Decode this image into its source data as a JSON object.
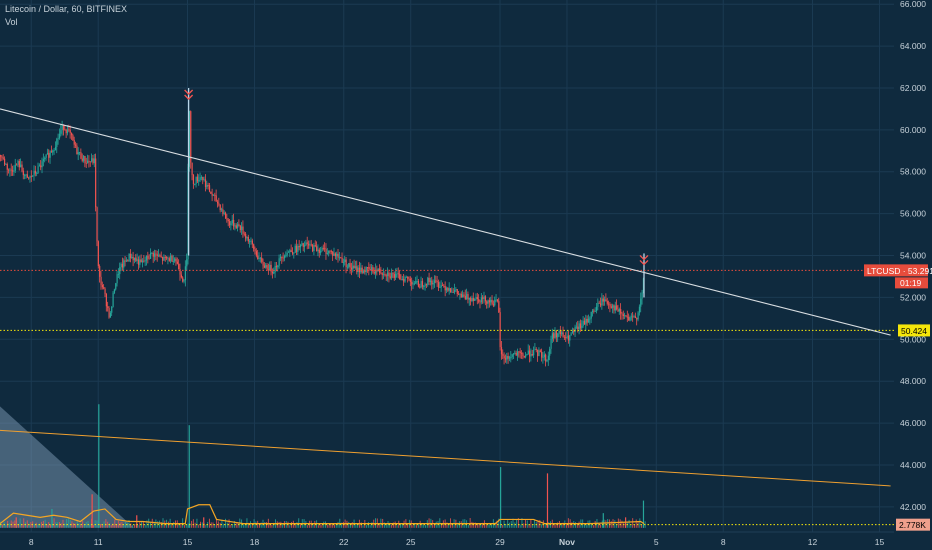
{
  "header": {
    "title": "Litecoin / Dollar, 60, BITFINEX",
    "indicator": "Vol"
  },
  "colors": {
    "background": "#0f2a3e",
    "up": "#26a69a",
    "down": "#ef5350",
    "trendline": "#d9dee2",
    "support": "#f5e60a",
    "vol_trend": "#f0a030",
    "vol_line": "#f5a623",
    "price_label_bg": "#e74c3c",
    "support_label_bg": "#f5e60a",
    "vol_label_bg": "#f0a08c",
    "axis_text": "#c7d2da"
  },
  "chart_data": {
    "type": "candlestick",
    "title": "Litecoin / Dollar, 60, BITFINEX",
    "symbol": "LTCUSD",
    "timeframe": "60",
    "exchange": "BITFINEX",
    "y_axis": {
      "position": "right",
      "ticks": [
        "42.000",
        "44.000",
        "46.000",
        "48.000",
        "50.000",
        "52.000",
        "54.000",
        "56.000",
        "58.000",
        "60.000",
        "62.000",
        "64.000",
        "66.000"
      ],
      "range": [
        40.8,
        66.2
      ]
    },
    "x_axis": {
      "ticks": [
        {
          "label": "8",
          "day": 8
        },
        {
          "label": "11",
          "day": 11
        },
        {
          "label": "15",
          "day": 15
        },
        {
          "label": "18",
          "day": 18
        },
        {
          "label": "22",
          "day": 22
        },
        {
          "label": "25",
          "day": 25
        },
        {
          "label": "29",
          "day": 29
        },
        {
          "label": "Nov",
          "day": 32
        },
        {
          "label": "5",
          "day": 36
        },
        {
          "label": "8",
          "day": 39
        },
        {
          "label": "12",
          "day": 43
        },
        {
          "label": "15",
          "day": 46
        }
      ]
    },
    "price_path": [
      [
        6.6,
        58.8
      ],
      [
        7.0,
        58.0
      ],
      [
        7.4,
        58.4
      ],
      [
        7.8,
        57.6
      ],
      [
        8.2,
        58.0
      ],
      [
        8.6,
        58.6
      ],
      [
        9.0,
        59.2
      ],
      [
        9.4,
        60.2
      ],
      [
        9.7,
        59.8
      ],
      [
        10.0,
        59.0
      ],
      [
        10.4,
        58.5
      ],
      [
        10.8,
        58.5
      ],
      [
        10.9,
        55.0
      ],
      [
        11.0,
        53.0
      ],
      [
        11.2,
        52.4
      ],
      [
        11.5,
        51.0
      ],
      [
        11.7,
        52.5
      ],
      [
        11.9,
        53.3
      ],
      [
        12.4,
        54.0
      ],
      [
        12.9,
        53.6
      ],
      [
        13.4,
        54.1
      ],
      [
        13.9,
        53.8
      ],
      [
        14.4,
        53.9
      ],
      [
        14.8,
        52.8
      ],
      [
        14.95,
        53.8
      ],
      [
        15.0,
        58.4
      ],
      [
        15.05,
        61.6
      ],
      [
        15.1,
        58.6
      ],
      [
        15.2,
        57.5
      ],
      [
        15.6,
        57.8
      ],
      [
        16.0,
        57.0
      ],
      [
        16.4,
        56.4
      ],
      [
        16.8,
        55.6
      ],
      [
        17.3,
        55.4
      ],
      [
        17.8,
        54.6
      ],
      [
        18.3,
        53.6
      ],
      [
        18.8,
        53.3
      ],
      [
        19.3,
        54.1
      ],
      [
        19.8,
        54.3
      ],
      [
        20.3,
        54.5
      ],
      [
        20.8,
        54.3
      ],
      [
        21.3,
        54.2
      ],
      [
        21.8,
        53.9
      ],
      [
        22.3,
        53.4
      ],
      [
        22.8,
        53.3
      ],
      [
        23.3,
        53.3
      ],
      [
        23.8,
        53.2
      ],
      [
        24.3,
        53.0
      ],
      [
        24.8,
        52.9
      ],
      [
        25.3,
        52.6
      ],
      [
        25.8,
        52.8
      ],
      [
        26.3,
        52.6
      ],
      [
        26.8,
        52.4
      ],
      [
        27.3,
        52.0
      ],
      [
        27.8,
        52.0
      ],
      [
        28.3,
        51.9
      ],
      [
        28.9,
        51.7
      ],
      [
        29.0,
        49.2
      ],
      [
        29.3,
        49.1
      ],
      [
        29.6,
        49.3
      ],
      [
        30.0,
        49.2
      ],
      [
        30.4,
        49.4
      ],
      [
        30.8,
        49.3
      ],
      [
        31.1,
        49.0
      ],
      [
        31.3,
        50.2
      ],
      [
        31.6,
        50.3
      ],
      [
        32.0,
        50.0
      ],
      [
        32.4,
        50.5
      ],
      [
        32.8,
        50.8
      ],
      [
        33.2,
        51.4
      ],
      [
        33.6,
        51.9
      ],
      [
        34.0,
        51.6
      ],
      [
        34.4,
        51.2
      ],
      [
        34.8,
        50.9
      ],
      [
        35.1,
        51.1
      ],
      [
        35.35,
        52.2
      ],
      [
        35.45,
        53.29
      ]
    ],
    "spikes": [
      {
        "day": 15.05,
        "high": 62.0,
        "low": 54.0,
        "marker": "double-chevron-down"
      },
      {
        "day": 35.45,
        "high": 54.1,
        "low": 52.0,
        "marker": "double-chevron-down"
      }
    ],
    "trendline": {
      "from": [
        6.6,
        61.0
      ],
      "to": [
        46.5,
        50.2
      ]
    },
    "horizontal_lines": [
      {
        "name": "current-price",
        "value": 53.291,
        "style": "dotted",
        "color": "#e74c3c"
      },
      {
        "name": "support",
        "value": 50.424,
        "style": "dotted",
        "color": "#f5e60a"
      },
      {
        "name": "volume-level",
        "value": 41.15,
        "style": "dotted",
        "color": "#f5e60a"
      }
    ],
    "volume": {
      "trendline": {
        "from": [
          6.6,
          45.65
        ],
        "to": [
          46.5,
          43.0
        ]
      },
      "area_fill": {
        "from_day": 6.6,
        "to_day": 12.6,
        "top": 46.8,
        "bottom": 41.0
      },
      "spikes": [
        {
          "day": 7.3,
          "height": 0.5
        },
        {
          "day": 8.9,
          "height": 0.9
        },
        {
          "day": 10.7,
          "height": 1.6
        },
        {
          "day": 11.0,
          "height": 5.9
        },
        {
          "day": 12.7,
          "height": 0.6
        },
        {
          "day": 15.05,
          "height": 4.9
        },
        {
          "day": 15.7,
          "height": 0.5
        },
        {
          "day": 29.0,
          "height": 2.9
        },
        {
          "day": 31.1,
          "height": 2.6
        },
        {
          "day": 33.6,
          "height": 0.7
        },
        {
          "day": 34.6,
          "height": 0.5
        },
        {
          "day": 35.4,
          "height": 1.3
        }
      ],
      "ma_path": [
        [
          6.6,
          41.2
        ],
        [
          7.2,
          41.7
        ],
        [
          7.8,
          41.6
        ],
        [
          8.4,
          41.5
        ],
        [
          9.0,
          41.6
        ],
        [
          9.6,
          41.5
        ],
        [
          10.2,
          41.3
        ],
        [
          10.8,
          41.8
        ],
        [
          11.3,
          41.9
        ],
        [
          11.8,
          41.4
        ],
        [
          12.4,
          41.3
        ],
        [
          13.0,
          41.3
        ],
        [
          14.0,
          41.2
        ],
        [
          14.9,
          41.2
        ],
        [
          15.0,
          41.9
        ],
        [
          15.5,
          42.1
        ],
        [
          16.0,
          42.1
        ],
        [
          16.3,
          41.4
        ],
        [
          17.5,
          41.2
        ],
        [
          20.0,
          41.2
        ],
        [
          24.0,
          41.2
        ],
        [
          28.8,
          41.2
        ],
        [
          29.0,
          41.4
        ],
        [
          30.5,
          41.4
        ],
        [
          31.0,
          41.2
        ],
        [
          33.0,
          41.2
        ],
        [
          35.3,
          41.3
        ],
        [
          35.45,
          41.2
        ]
      ]
    },
    "last_price": "53.291",
    "symbol_label": "LTCUSD",
    "countdown": "01:19",
    "support_label": "50.424",
    "volume_label": "2.778K"
  }
}
